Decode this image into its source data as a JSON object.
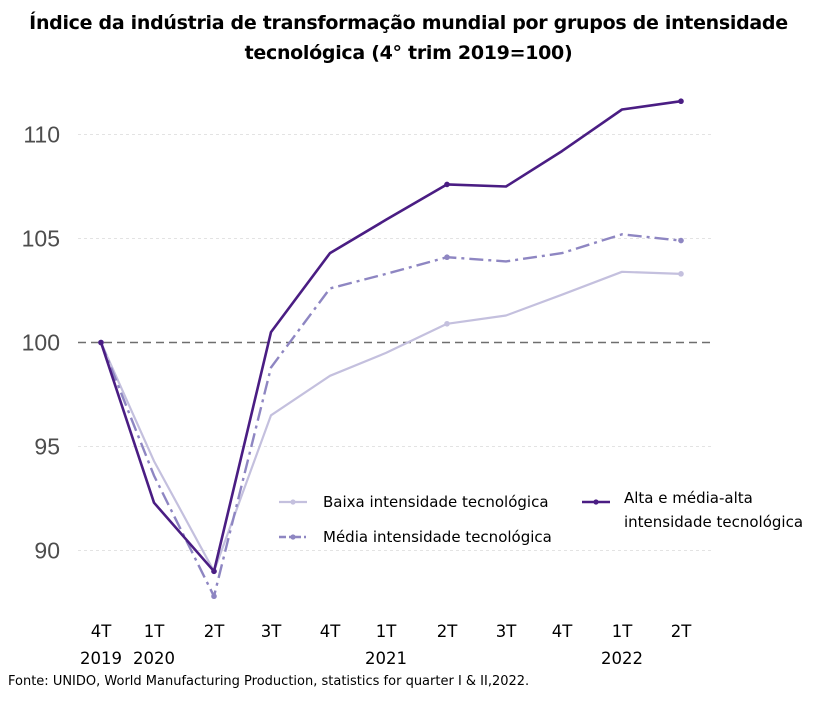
{
  "title_line1": "Índice da indústria de transformação mundial por grupos de intensidade",
  "title_line2": "tecnológica (4° trim 2019=100)",
  "source": "Fonte: UNIDO, World Manufacturing Production, statistics for quarter I & II,2022.",
  "colors": {
    "baixa": "#c4c0de",
    "media": "#8e86c2",
    "alta": "#4a1d83",
    "reference": "#6e6e6e",
    "grid": "#e3e3e3"
  },
  "chart_data": {
    "type": "line",
    "title": "Índice da indústria de transformação mundial por grupos de intensidade tecnológica (4° trim 2019=100)",
    "x": [
      "4T 2019",
      "1T 2020",
      "2T 2020",
      "3T 2020",
      "4T 2020",
      "1T 2021",
      "2T 2021",
      "3T 2021",
      "4T 2021",
      "1T 2022",
      "2T 2022"
    ],
    "x_tick_quarters": [
      "4T",
      "1T",
      "2T",
      "3T",
      "4T",
      "1T",
      "2T",
      "3T",
      "4T",
      "1T",
      "2T"
    ],
    "x_tick_years": [
      "2019",
      "2020",
      "",
      "",
      "",
      "2021",
      "",
      "",
      "",
      "2022",
      ""
    ],
    "yticks": [
      90,
      95,
      100,
      105,
      110
    ],
    "ylim": [
      87.5,
      112
    ],
    "reference_line": 100,
    "grid": true,
    "legend_position": "bottom-right",
    "series": [
      {
        "name": "Baixa intensidade tecnológica",
        "key": "baixa",
        "style": "solid",
        "values": [
          100,
          94.3,
          89.0,
          96.5,
          98.4,
          99.5,
          100.9,
          101.3,
          102.3,
          103.4,
          103.3
        ]
      },
      {
        "name": "Média intensidade tecnológica",
        "key": "media",
        "style": "dashdot",
        "values": [
          100,
          93.6,
          87.8,
          98.8,
          102.6,
          103.3,
          104.1,
          103.9,
          104.3,
          105.2,
          104.9
        ]
      },
      {
        "name": "Alta e média-alta intensidade tecnológica",
        "name_line1": "Alta e média-alta",
        "name_line2": "intensidade tecnológica",
        "key": "alta",
        "style": "solid",
        "values": [
          100,
          92.3,
          89.0,
          100.5,
          104.3,
          105.9,
          107.6,
          107.5,
          109.2,
          111.2,
          111.6
        ]
      }
    ]
  }
}
